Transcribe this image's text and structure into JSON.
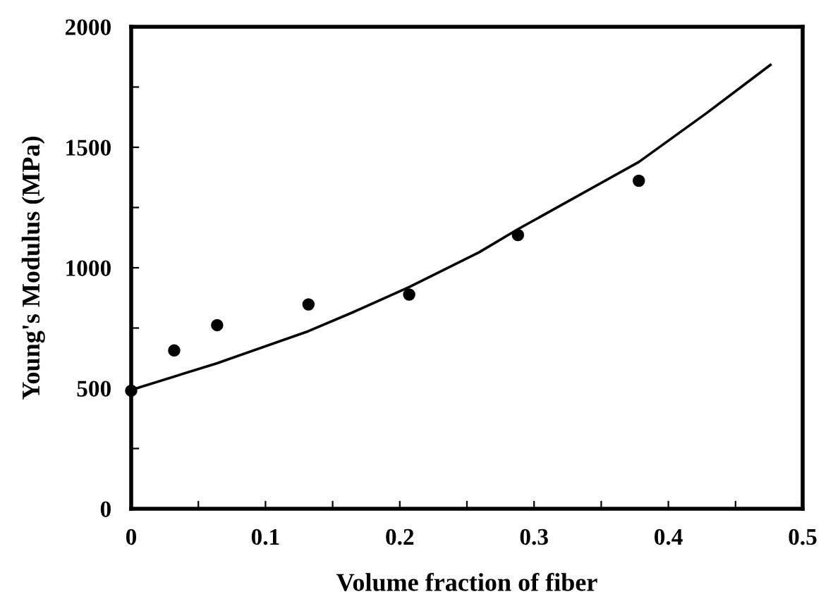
{
  "chart_data": {
    "type": "scatter",
    "xlabel": "Volume fraction of fiber",
    "ylabel": "Young's Modulus (MPa)",
    "xlim": [
      0,
      0.5
    ],
    "ylim": [
      0,
      2000
    ],
    "xticks": [
      0,
      {
        "value": 0.05,
        "label": null
      },
      0.1,
      {
        "value": 0.15,
        "label": null
      },
      0.2,
      {
        "value": 0.25,
        "label": null
      },
      0.3,
      {
        "value": 0.35,
        "label": null
      },
      0.4,
      {
        "value": 0.45,
        "label": null
      },
      0.5
    ],
    "yticks": [
      0,
      {
        "value": 250,
        "label": null
      },
      500,
      {
        "value": 750,
        "label": null
      },
      1000,
      {
        "value": 1250,
        "label": null
      },
      1500,
      {
        "value": 1750,
        "label": null
      },
      2000
    ],
    "grid": false,
    "legend": false,
    "series": [
      {
        "color": "#000000",
        "marker": "circle",
        "x": [
          0,
          0.032,
          0.064,
          0.132,
          0.207,
          0.288,
          0.378
        ],
        "values": [
          490,
          657,
          762,
          848,
          889,
          1136,
          1361
        ]
      },
      {
        "type": "line",
        "color": "#000000",
        "marker": "none",
        "line_style": "solid",
        "x": [
          0,
          0.064,
          0.132,
          0.165,
          0.207,
          0.259,
          0.288,
          0.378,
          0.428,
          0.476
        ],
        "values": [
          493,
          604,
          737,
          815,
          920,
          1064,
          1160,
          1439,
          1640,
          1842
        ]
      }
    ]
  }
}
